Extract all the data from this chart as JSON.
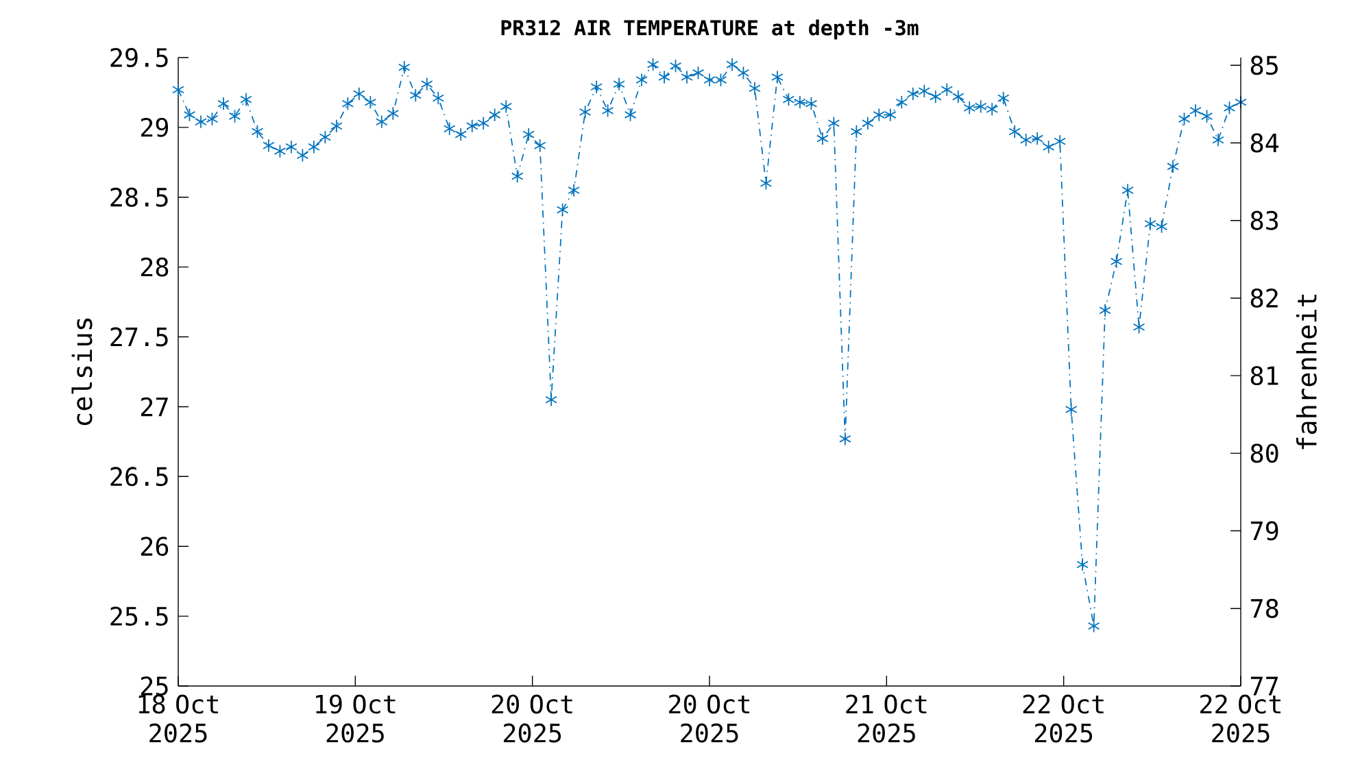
{
  "chart_data": {
    "type": "line",
    "title": "PR312 AIR TEMPERATURE at depth -3m",
    "ylabel": "celsius",
    "y2label": "fahrenheit",
    "x": [
      "2025-10-18T20:00",
      "2025-10-18T21:00",
      "2025-10-18T22:00",
      "2025-10-18T23:00",
      "2025-10-19T00:00",
      "2025-10-19T01:00",
      "2025-10-19T02:00",
      "2025-10-19T03:00",
      "2025-10-19T04:00",
      "2025-10-19T05:00",
      "2025-10-19T06:00",
      "2025-10-19T07:00",
      "2025-10-19T08:00",
      "2025-10-19T09:00",
      "2025-10-19T10:00",
      "2025-10-19T11:00",
      "2025-10-19T12:00",
      "2025-10-19T13:00",
      "2025-10-19T14:00",
      "2025-10-19T15:00",
      "2025-10-19T16:00",
      "2025-10-19T17:00",
      "2025-10-19T18:00",
      "2025-10-19T19:00",
      "2025-10-19T20:00",
      "2025-10-19T21:00",
      "2025-10-19T22:00",
      "2025-10-19T23:00",
      "2025-10-20T00:00",
      "2025-10-20T01:00",
      "2025-10-20T02:00",
      "2025-10-20T03:00",
      "2025-10-20T04:00",
      "2025-10-20T05:00",
      "2025-10-20T06:00",
      "2025-10-20T07:00",
      "2025-10-20T08:00",
      "2025-10-20T09:00",
      "2025-10-20T10:00",
      "2025-10-20T11:00",
      "2025-10-20T12:00",
      "2025-10-20T13:00",
      "2025-10-20T14:00",
      "2025-10-20T15:00",
      "2025-10-20T16:00",
      "2025-10-20T17:00",
      "2025-10-20T18:00",
      "2025-10-20T19:00",
      "2025-10-20T20:00",
      "2025-10-20T21:00",
      "2025-10-20T22:00",
      "2025-10-20T23:00",
      "2025-10-21T00:00",
      "2025-10-21T01:00",
      "2025-10-21T02:00",
      "2025-10-21T03:00",
      "2025-10-21T04:00",
      "2025-10-21T05:00",
      "2025-10-21T06:00",
      "2025-10-21T07:00",
      "2025-10-21T08:00",
      "2025-10-21T09:00",
      "2025-10-21T10:00",
      "2025-10-21T11:00",
      "2025-10-21T12:00",
      "2025-10-21T13:00",
      "2025-10-21T14:00",
      "2025-10-21T15:00",
      "2025-10-21T16:00",
      "2025-10-21T17:00",
      "2025-10-21T18:00",
      "2025-10-21T19:00",
      "2025-10-21T20:00",
      "2025-10-21T21:00",
      "2025-10-21T22:00",
      "2025-10-21T23:00",
      "2025-10-22T00:00",
      "2025-10-22T01:00",
      "2025-10-22T02:00",
      "2025-10-22T03:00",
      "2025-10-22T04:00",
      "2025-10-22T05:00",
      "2025-10-22T06:00",
      "2025-10-22T07:00",
      "2025-10-22T08:00",
      "2025-10-22T09:00",
      "2025-10-22T10:00",
      "2025-10-22T11:00",
      "2025-10-22T12:00",
      "2025-10-22T13:00",
      "2025-10-22T14:00",
      "2025-10-22T15:00",
      "2025-10-22T16:00",
      "2025-10-22T17:00",
      "2025-10-22T18:00"
    ],
    "series": [
      {
        "color": "#0072bd",
        "values": [
          29.27,
          29.09,
          29.04,
          29.06,
          29.17,
          29.08,
          29.2,
          28.97,
          28.87,
          28.83,
          28.86,
          28.8,
          28.86,
          28.93,
          29.01,
          29.17,
          29.24,
          29.18,
          29.04,
          29.1,
          29.43,
          29.23,
          29.31,
          29.21,
          28.99,
          28.95,
          29.01,
          29.03,
          29.09,
          29.15,
          28.65,
          28.95,
          28.87,
          27.05,
          28.41,
          28.55,
          29.11,
          29.29,
          29.12,
          29.31,
          29.09,
          29.34,
          29.45,
          29.36,
          29.44,
          29.36,
          29.39,
          29.34,
          29.34,
          29.45,
          29.39,
          29.28,
          28.6,
          29.36,
          29.2,
          29.18,
          29.17,
          28.92,
          29.03,
          26.77,
          28.97,
          29.03,
          29.09,
          29.09,
          29.18,
          29.24,
          29.26,
          29.22,
          29.27,
          29.22,
          29.14,
          29.15,
          29.13,
          29.21,
          28.97,
          28.91,
          28.92,
          28.86,
          28.9,
          26.98,
          25.87,
          25.43,
          27.69,
          28.04,
          28.55,
          27.57,
          28.31,
          28.29,
          28.72,
          29.06,
          29.12,
          29.08,
          28.91,
          29.14,
          29.18
        ]
      }
    ],
    "marker": "cross",
    "line_style": "dashdot",
    "xlim": [
      "2025-10-18T20:00",
      "2025-10-22T18:00"
    ],
    "xticks": [
      {
        "value": "2025-10-18T20:00",
        "label": "18 Oct 2025"
      },
      {
        "value": "2025-10-19T11:40",
        "label": "19 Oct 2025"
      },
      {
        "value": "2025-10-20T03:20",
        "label": "20 Oct 2025"
      },
      {
        "value": "2025-10-20T19:00",
        "label": "20 Oct 2025"
      },
      {
        "value": "2025-10-21T10:40",
        "label": "21 Oct 2025"
      },
      {
        "value": "2025-10-22T02:20",
        "label": "22 Oct 2025"
      },
      {
        "value": "2025-10-22T18:00",
        "label": "22 Oct 2025"
      }
    ],
    "ylim": [
      25,
      29.5
    ],
    "yticks": [
      25,
      25.5,
      26,
      26.5,
      27,
      27.5,
      28,
      28.5,
      29,
      29.5
    ],
    "y2lim": [
      77,
      85.1
    ],
    "y2ticks": [
      77,
      78,
      79,
      80,
      81,
      82,
      83,
      84,
      85
    ]
  }
}
